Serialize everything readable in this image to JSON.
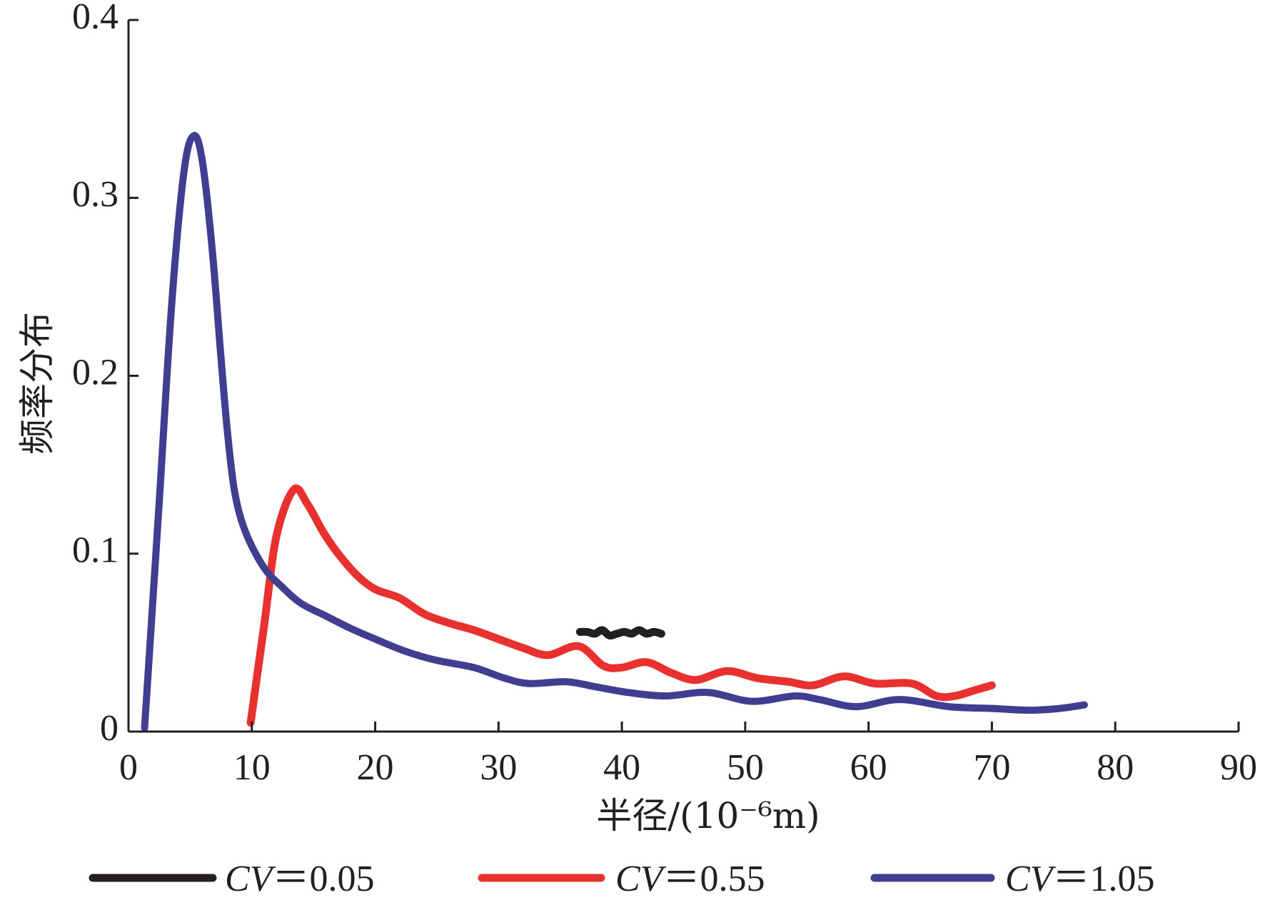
{
  "chart_data": {
    "type": "line",
    "xlabel": "半径/(10⁻⁶m)",
    "ylabel": "频率分布",
    "xlim": [
      0,
      90
    ],
    "ylim": [
      0,
      0.4
    ],
    "x_ticks": [
      "0",
      "10",
      "20",
      "30",
      "40",
      "50",
      "60",
      "70",
      "80",
      "90"
    ],
    "y_ticks": [
      "0",
      "0.1",
      "0.2",
      "0.3",
      "0.4"
    ],
    "grid": false,
    "legend_position": "bottom",
    "series": [
      {
        "name": "CV＝0.05",
        "color": "#231f20",
        "x": [
          36.6,
          37.2,
          37.8,
          38.4,
          39.0,
          39.6,
          40.2,
          40.8,
          41.4,
          42.0,
          42.6,
          43.2
        ],
        "y": [
          0.056,
          0.056,
          0.055,
          0.057,
          0.054,
          0.055,
          0.056,
          0.055,
          0.057,
          0.055,
          0.056,
          0.055
        ]
      },
      {
        "name": "CV＝0.55",
        "color": "#e8302e",
        "x": [
          9.9,
          11.0,
          12.0,
          13.4,
          14.5,
          15.8,
          17.0,
          18.5,
          20.0,
          22.0,
          24.0,
          26.0,
          28.0,
          30.0,
          32.0,
          34.0,
          36.5,
          38.5,
          40.0,
          42.0,
          44.0,
          46.0,
          48.5,
          51.0,
          53.5,
          55.5,
          58.0,
          60.5,
          63.5,
          65.5,
          67.0,
          68.5,
          70.0
        ],
        "y": [
          0.005,
          0.06,
          0.11,
          0.136,
          0.128,
          0.112,
          0.1,
          0.088,
          0.08,
          0.075,
          0.066,
          0.061,
          0.057,
          0.052,
          0.047,
          0.043,
          0.048,
          0.037,
          0.036,
          0.039,
          0.033,
          0.029,
          0.034,
          0.03,
          0.028,
          0.026,
          0.031,
          0.027,
          0.027,
          0.02,
          0.02,
          0.023,
          0.026
        ]
      },
      {
        "name": "CV＝1.05",
        "color": "#3f3e91",
        "x": [
          1.3,
          2.5,
          3.5,
          4.5,
          5.3,
          6.0,
          6.8,
          7.5,
          8.0,
          8.6,
          9.5,
          11.0,
          12.5,
          14.0,
          16.0,
          18.0,
          20.0,
          22.5,
          25.0,
          28.0,
          30.5,
          32.5,
          35.5,
          38.0,
          40.5,
          43.5,
          47.0,
          50.5,
          54.0,
          56.0,
          59.0,
          62.5,
          66.5,
          70.0,
          73.0,
          75.5,
          77.5
        ],
        "y": [
          0.002,
          0.13,
          0.24,
          0.315,
          0.335,
          0.32,
          0.27,
          0.21,
          0.17,
          0.135,
          0.112,
          0.092,
          0.081,
          0.072,
          0.065,
          0.058,
          0.052,
          0.045,
          0.04,
          0.036,
          0.03,
          0.027,
          0.028,
          0.025,
          0.022,
          0.02,
          0.022,
          0.017,
          0.02,
          0.018,
          0.014,
          0.018,
          0.014,
          0.013,
          0.012,
          0.013,
          0.015
        ]
      }
    ]
  }
}
